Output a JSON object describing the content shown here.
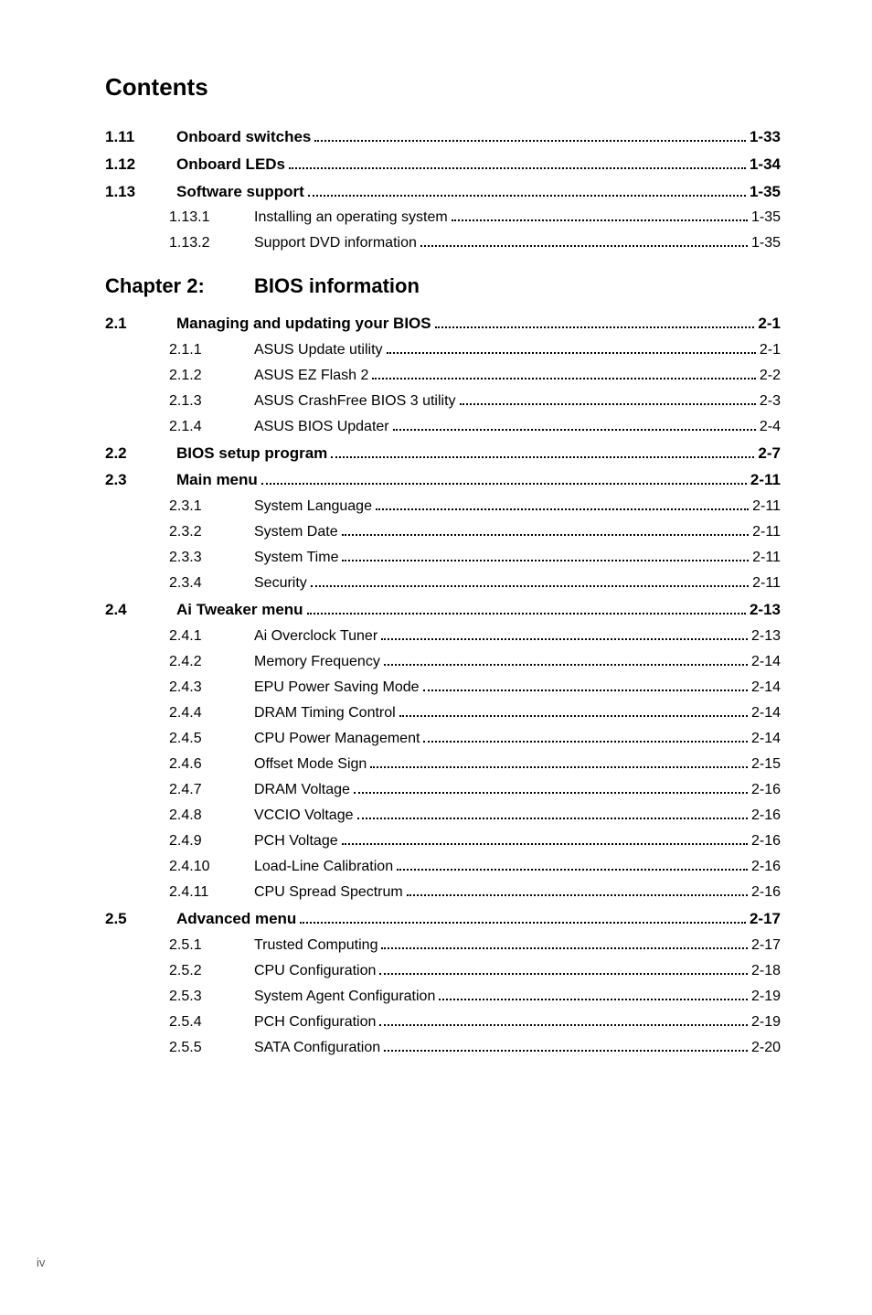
{
  "title": "Contents",
  "footer_page": "iv",
  "toc": [
    {
      "level": 1,
      "num": "1.11",
      "label": "Onboard switches",
      "page": "1-33"
    },
    {
      "level": 1,
      "num": "1.12",
      "label": "Onboard LEDs",
      "page": "1-34"
    },
    {
      "level": 1,
      "num": "1.13",
      "label": "Software support",
      "page": "1-35"
    },
    {
      "level": 2,
      "num": "1.13.1",
      "label": "Installing an operating system",
      "page": "1-35"
    },
    {
      "level": 2,
      "num": "1.13.2",
      "label": "Support DVD information",
      "page": "1-35"
    },
    {
      "level": 0,
      "num": "Chapter 2:",
      "label": "BIOS information",
      "page": ""
    },
    {
      "level": 1,
      "num": "2.1",
      "label": "Managing and updating your BIOS",
      "page": "2-1"
    },
    {
      "level": 2,
      "num": "2.1.1",
      "label": "ASUS Update utility",
      "page": "2-1"
    },
    {
      "level": 2,
      "num": "2.1.2",
      "label": "ASUS EZ Flash 2",
      "page": "2-2"
    },
    {
      "level": 2,
      "num": "2.1.3",
      "label": "ASUS CrashFree BIOS 3 utility",
      "page": "2-3"
    },
    {
      "level": 2,
      "num": "2.1.4",
      "label": "ASUS BIOS Updater",
      "page": "2-4"
    },
    {
      "level": 1,
      "num": "2.2",
      "label": "BIOS setup program",
      "page": "2-7"
    },
    {
      "level": 1,
      "num": "2.3",
      "label": "Main menu",
      "page": "2-11"
    },
    {
      "level": 2,
      "num": "2.3.1",
      "label": "System Language",
      "page": "2-11"
    },
    {
      "level": 2,
      "num": "2.3.2",
      "label": "System Date",
      "page": "2-11"
    },
    {
      "level": 2,
      "num": "2.3.3",
      "label": "System Time",
      "page": "2-11"
    },
    {
      "level": 2,
      "num": "2.3.4",
      "label": "Security",
      "page": "2-11"
    },
    {
      "level": 1,
      "num": "2.4",
      "label": "Ai Tweaker menu",
      "page": "2-13"
    },
    {
      "level": 2,
      "num": "2.4.1",
      "label": "Ai Overclock Tuner",
      "page": "2-13"
    },
    {
      "level": 2,
      "num": "2.4.2",
      "label": "Memory Frequency",
      "page": "2-14"
    },
    {
      "level": 2,
      "num": "2.4.3",
      "label": "EPU Power Saving Mode",
      "page": "2-14"
    },
    {
      "level": 2,
      "num": "2.4.4",
      "label": "DRAM Timing Control",
      "page": "2-14"
    },
    {
      "level": 2,
      "num": "2.4.5",
      "label": "CPU Power Management",
      "page": "2-14"
    },
    {
      "level": 2,
      "num": "2.4.6",
      "label": "Offset Mode Sign",
      "page": "2-15"
    },
    {
      "level": 2,
      "num": "2.4.7",
      "label": "DRAM Voltage",
      "page": "2-16"
    },
    {
      "level": 2,
      "num": "2.4.8",
      "label": "VCCIO Voltage",
      "page": "2-16"
    },
    {
      "level": 2,
      "num": "2.4.9",
      "label": "PCH Voltage",
      "page": "2-16"
    },
    {
      "level": 2,
      "num": "2.4.10",
      "label": "Load-Line Calibration",
      "page": "2-16"
    },
    {
      "level": 2,
      "num": "2.4.11",
      "label": "CPU Spread Spectrum",
      "page": "2-16"
    },
    {
      "level": 1,
      "num": "2.5",
      "label": "Advanced menu",
      "page": "2-17"
    },
    {
      "level": 2,
      "num": "2.5.1",
      "label": "Trusted Computing",
      "page": "2-17"
    },
    {
      "level": 2,
      "num": "2.5.2",
      "label": "CPU Configuration",
      "page": "2-18"
    },
    {
      "level": 2,
      "num": "2.5.3",
      "label": "System Agent Configuration",
      "page": "2-19"
    },
    {
      "level": 2,
      "num": "2.5.4",
      "label": "PCH Configuration",
      "page": "2-19"
    },
    {
      "level": 2,
      "num": "2.5.5",
      "label": "SATA Configuration",
      "page": "2-20"
    }
  ]
}
